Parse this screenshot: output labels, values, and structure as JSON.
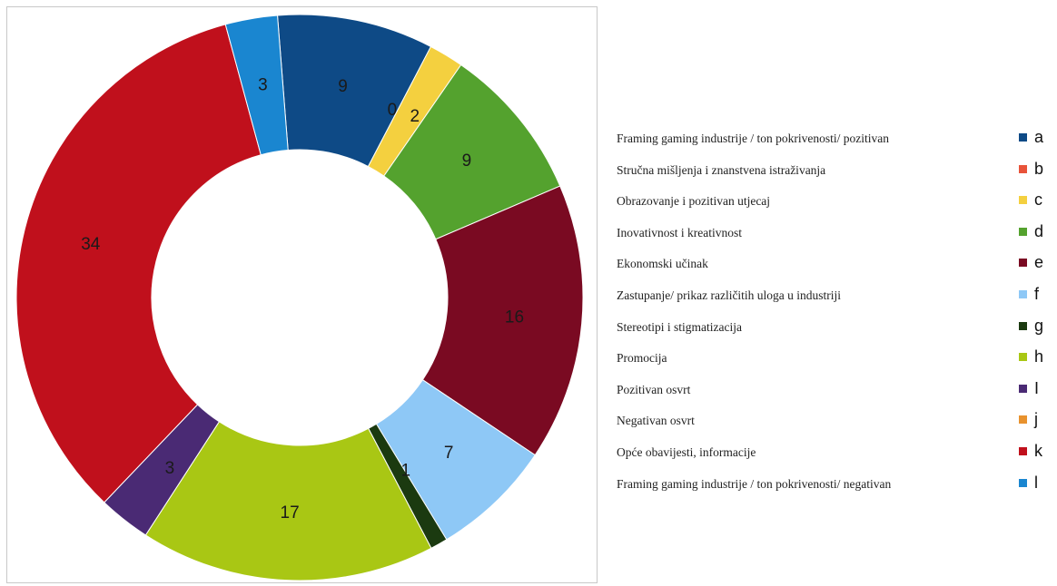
{
  "chart_data": {
    "type": "pie",
    "variant": "donut",
    "categories": [
      "a",
      "b",
      "c",
      "d",
      "e",
      "f",
      "g",
      "h",
      "i",
      "j",
      "k",
      "l"
    ],
    "values": [
      9,
      0,
      2,
      9,
      16,
      7,
      1,
      17,
      3,
      0,
      34,
      3
    ],
    "colors": [
      "#0e4a86",
      "#e8533a",
      "#f4d03f",
      "#54a22e",
      "#7a0a22",
      "#8ec8f6",
      "#1b3a10",
      "#a9c714",
      "#4a2a74",
      "#e8922e",
      "#c0101c",
      "#1a86d0"
    ],
    "legend": {
      "position": "right",
      "labels": [
        "a",
        "b",
        "c",
        "d",
        "e",
        "f",
        "g",
        "h",
        "I",
        "j",
        "k",
        "l"
      ]
    },
    "data_labels": [
      "9",
      "0",
      "2",
      "9",
      "16",
      "7",
      "1",
      "17",
      "3",
      "0",
      "34",
      "3"
    ]
  },
  "descriptions": [
    "Framing gaming industrije / ton pokrivenosti/ pozitivan",
    "Stručna mišljenja i znanstvena istraživanja",
    "Obrazovanje i pozitivan utjecaj",
    "Inovativnost i kreativnost",
    "Ekonomski učinak",
    "Zastupanje/ prikaz različitih uloga u industriji",
    "Stereotipi i stigmatizacija",
    "Promocija",
    "Pozitivan osvrt",
    "Negativan osvrt",
    "Opće obavijesti, informacije",
    "Framing gaming industrije / ton pokrivenosti/ negativan"
  ]
}
